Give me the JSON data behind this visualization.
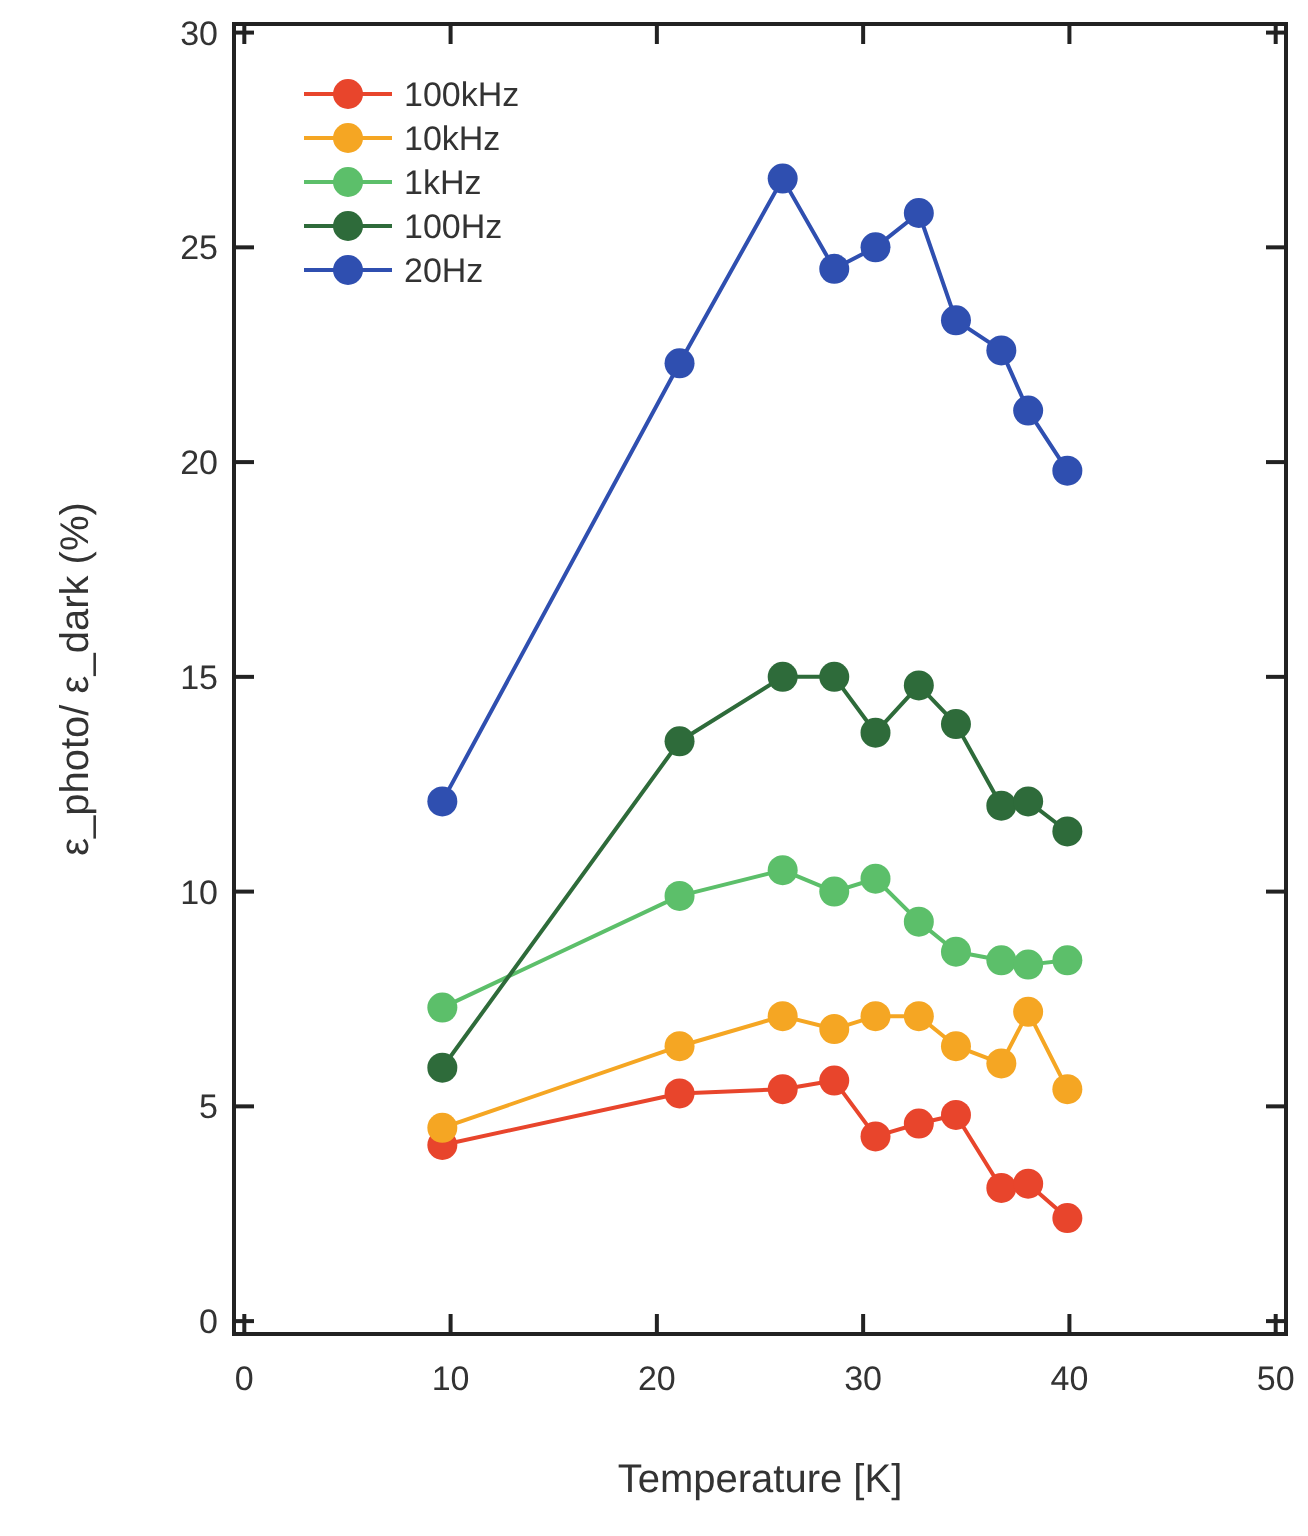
{
  "chart_data": {
    "type": "line",
    "xlabel": "Temperature [K]",
    "ylabel": "ε_photo/ ε_dark (%)",
    "x": [
      9.6,
      21.1,
      26.1,
      28.6,
      30.6,
      32.7,
      34.5,
      36.7,
      38.0,
      39.9
    ],
    "xlim": [
      -0.5,
      50.5
    ],
    "ylim": [
      -0.3,
      30.2
    ],
    "xticks": [
      0,
      10,
      20,
      30,
      40,
      50
    ],
    "yticks": [
      0,
      5,
      10,
      15,
      20,
      25,
      30
    ],
    "marker": "circle",
    "legend": "top left",
    "grid": false,
    "series": [
      {
        "name": "100kHz",
        "color": "#e8452c",
        "values": [
          4.1,
          5.3,
          5.4,
          5.6,
          4.3,
          4.6,
          4.8,
          3.1,
          3.2,
          2.4
        ]
      },
      {
        "name": "10kHz",
        "color": "#f5a623",
        "values": [
          4.5,
          6.4,
          7.1,
          6.8,
          7.1,
          7.1,
          6.4,
          6.0,
          7.2,
          5.4
        ]
      },
      {
        "name": "1kHz",
        "color": "#5cbf6a",
        "values": [
          7.3,
          9.9,
          10.5,
          10.0,
          10.3,
          9.3,
          8.6,
          8.4,
          8.3,
          8.4
        ]
      },
      {
        "name": "100Hz",
        "color": "#2e6b3a",
        "values": [
          5.9,
          13.5,
          15.0,
          15.0,
          13.7,
          14.8,
          13.9,
          12.0,
          12.1,
          11.4
        ]
      },
      {
        "name": "20Hz",
        "color": "#2f4fb0",
        "values": [
          12.1,
          22.3,
          26.6,
          24.5,
          25.0,
          25.8,
          23.3,
          22.6,
          21.2,
          19.8
        ]
      }
    ]
  }
}
